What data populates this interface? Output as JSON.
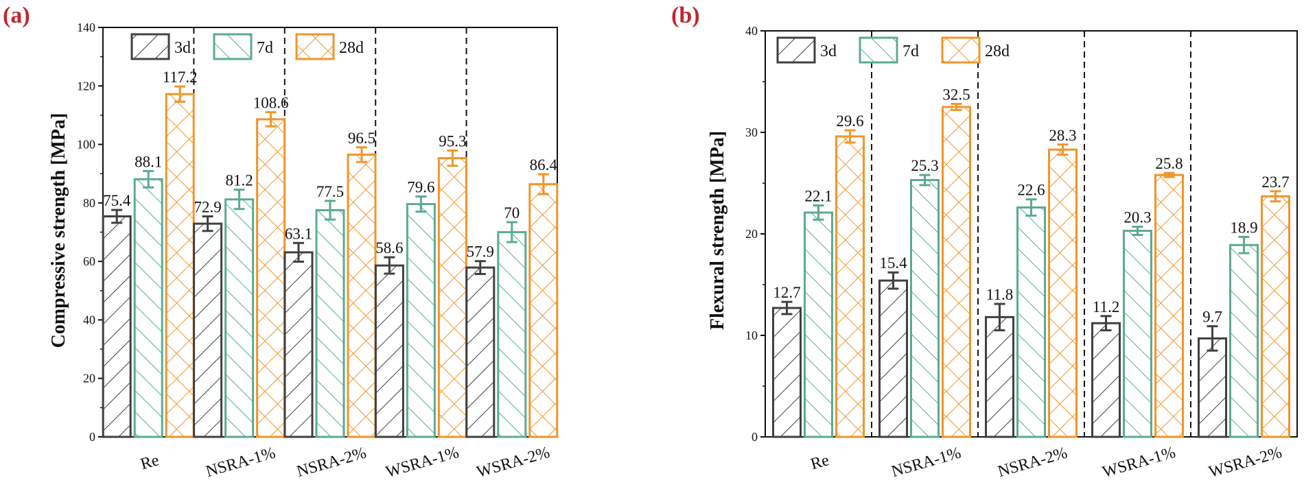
{
  "chart_data": [
    {
      "type": "bar",
      "panel_label": "(a)",
      "ylabel": "Compressive strength [MPa]",
      "ylim": [
        0,
        140
      ],
      "yticks": [
        0,
        20,
        40,
        60,
        80,
        100,
        120,
        140
      ],
      "categories": [
        "Re",
        "NSRA-1%",
        "NSRA-2%",
        "WSRA-1%",
        "WSRA-2%"
      ],
      "legend_position": "top-left",
      "series": [
        {
          "name": "3d",
          "values": [
            75.4,
            72.9,
            63.1,
            58.6,
            57.9
          ],
          "labels": [
            "75.4",
            "72.9",
            "63.1",
            "58.6",
            "57.9"
          ],
          "errors": [
            2.2,
            2.5,
            3.2,
            2.8,
            2.2
          ],
          "color": "#404040",
          "pattern": "diagonal-forward"
        },
        {
          "name": "7d",
          "values": [
            88.1,
            81.2,
            77.5,
            79.6,
            70
          ],
          "labels": [
            "88.1",
            "81.2",
            "77.5",
            "79.6",
            "70"
          ],
          "errors": [
            2.8,
            3.3,
            3.2,
            2.6,
            3.4
          ],
          "color": "#5aab92",
          "pattern": "diagonal-backward"
        },
        {
          "name": "28d",
          "values": [
            117.2,
            108.6,
            96.5,
            95.3,
            86.4
          ],
          "labels": [
            "117.2",
            "108.6",
            "96.5",
            "95.3",
            "86.4"
          ],
          "errors": [
            2.6,
            2.4,
            2.5,
            2.6,
            3.4
          ],
          "color": "#f0952a",
          "pattern": "crosshatch"
        }
      ]
    },
    {
      "type": "bar",
      "panel_label": "(b)",
      "ylabel": "Flexural strength [MPa]",
      "ylim": [
        0,
        40
      ],
      "yticks": [
        0,
        10,
        20,
        30,
        40
      ],
      "categories": [
        "Re",
        "NSRA-1%",
        "NSRA-2%",
        "WSRA-1%",
        "WSRA-2%"
      ],
      "legend_position": "top-left",
      "series": [
        {
          "name": "3d",
          "values": [
            12.7,
            15.4,
            11.8,
            11.2,
            9.7
          ],
          "labels": [
            "12.7",
            "15.4",
            "11.8",
            "11.2",
            "9.7"
          ],
          "errors": [
            0.6,
            0.8,
            1.3,
            0.7,
            1.2
          ],
          "color": "#404040",
          "pattern": "diagonal-forward"
        },
        {
          "name": "7d",
          "values": [
            22.1,
            25.3,
            22.6,
            20.3,
            18.9
          ],
          "labels": [
            "22.1",
            "25.3",
            "22.6",
            "20.3",
            "18.9"
          ],
          "errors": [
            0.7,
            0.5,
            0.8,
            0.4,
            0.8
          ],
          "color": "#5aab92",
          "pattern": "diagonal-backward"
        },
        {
          "name": "28d",
          "values": [
            29.6,
            32.5,
            28.3,
            25.8,
            23.7
          ],
          "labels": [
            "29.6",
            "32.5",
            "28.3",
            "25.8",
            "23.7"
          ],
          "errors": [
            0.6,
            0.3,
            0.5,
            0.2,
            0.5
          ],
          "color": "#f0952a",
          "pattern": "crosshatch"
        }
      ]
    }
  ]
}
